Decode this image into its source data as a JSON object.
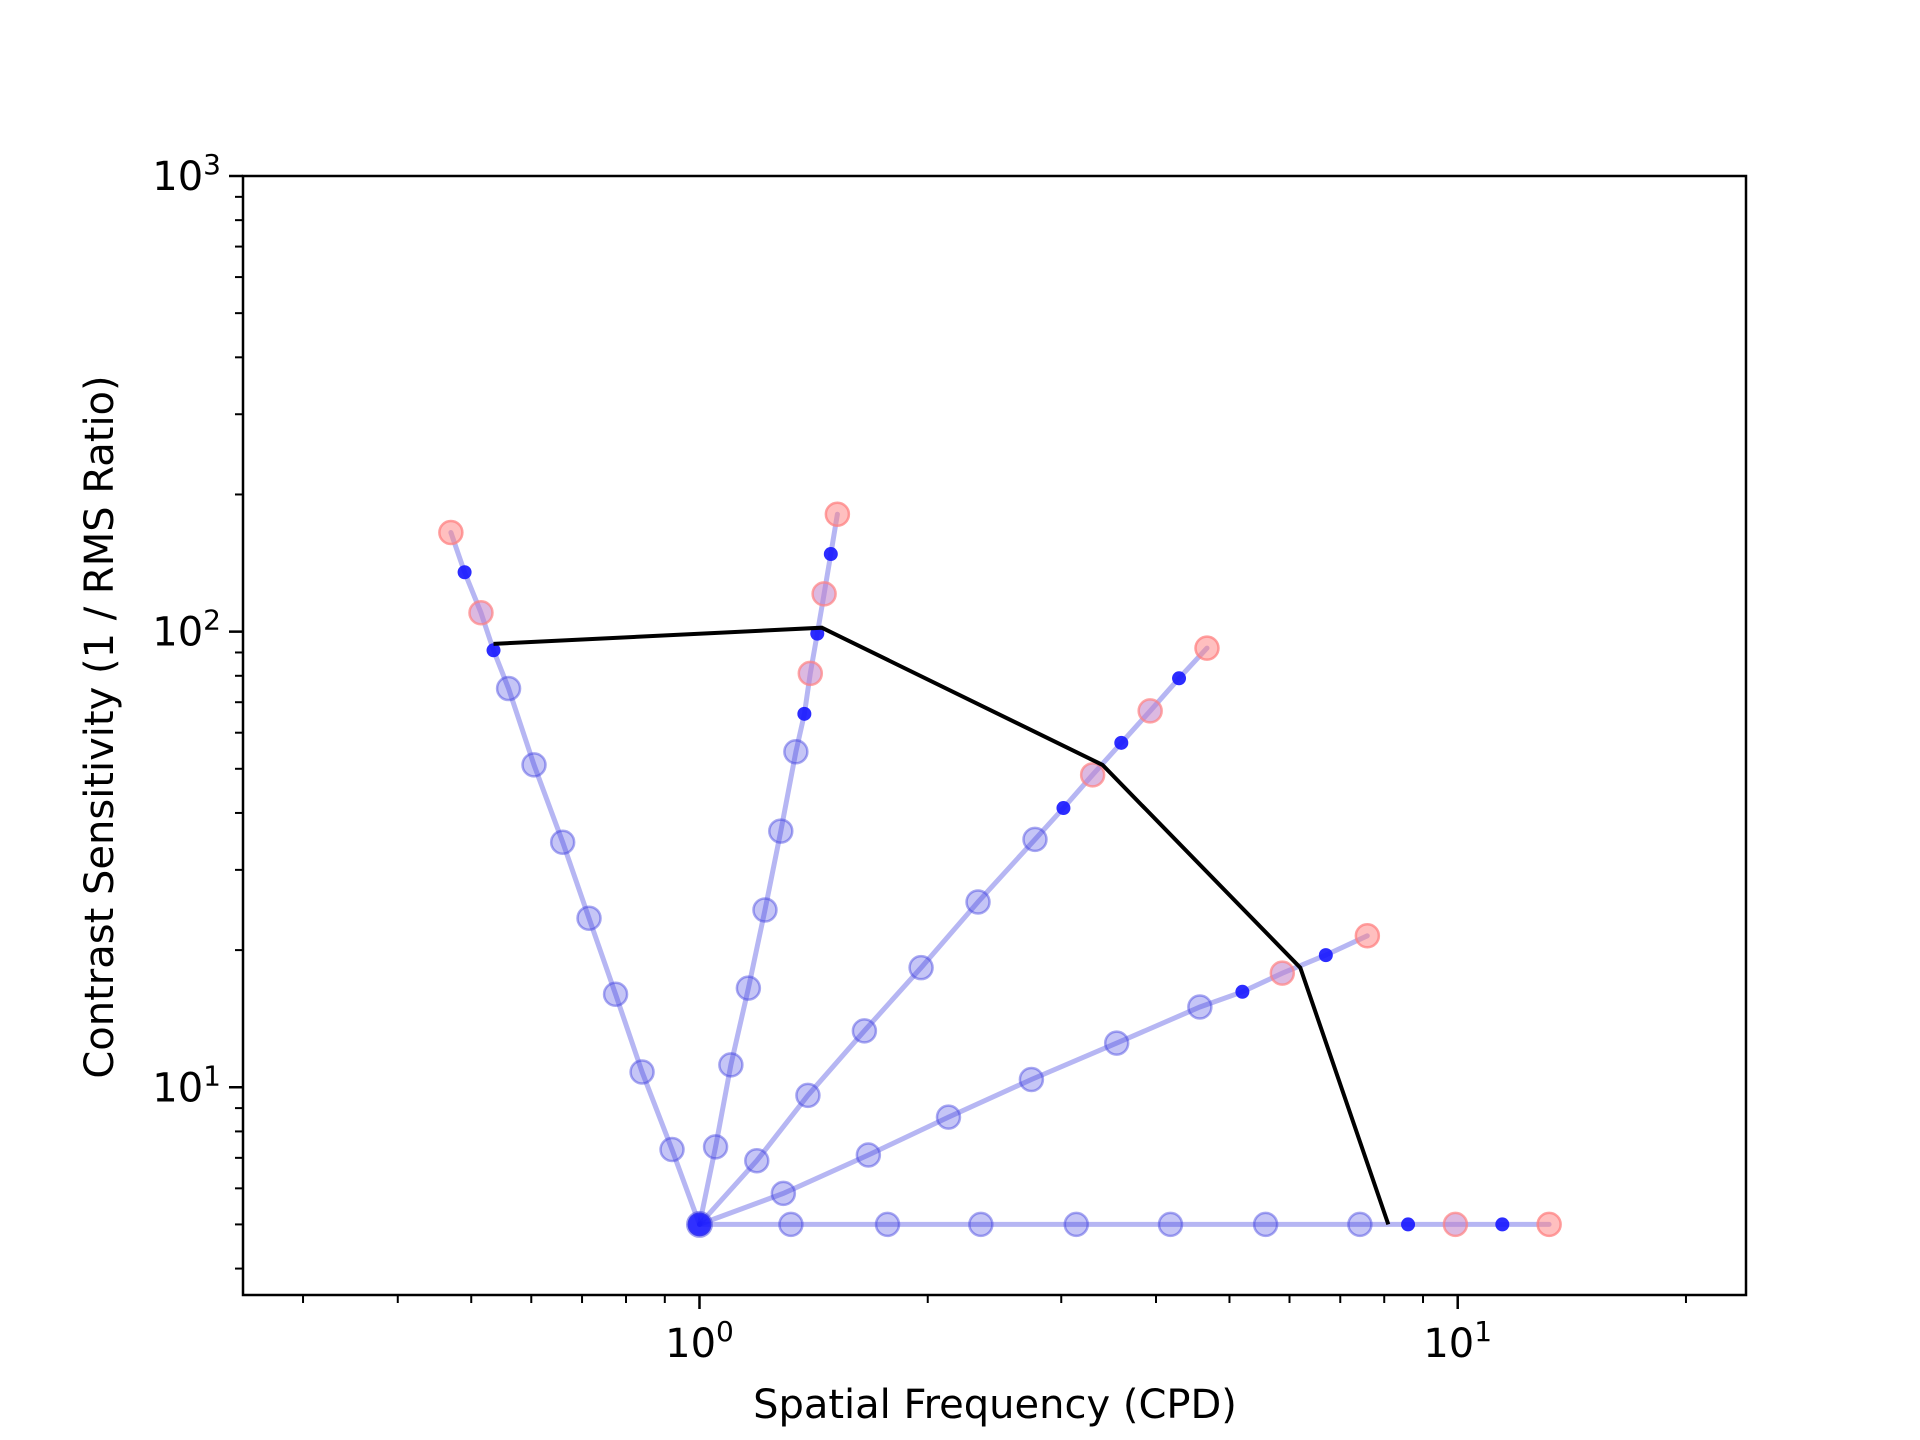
{
  "chart_data": {
    "type": "scatter",
    "title": "",
    "xlabel": "Spatial Frequency (CPD)",
    "ylabel": "Contrast Sensitivity (1 / RMS Ratio)",
    "xscale": "log",
    "yscale": "log",
    "xlim": [
      0.25,
      24
    ],
    "ylim": [
      3.5,
      1000
    ],
    "grid": false,
    "legend": "none",
    "x_major_ticks": [
      {
        "value": 1,
        "base": "10",
        "exp": "0"
      },
      {
        "value": 10,
        "base": "10",
        "exp": "1"
      }
    ],
    "y_major_ticks": [
      {
        "value": 10,
        "base": "10",
        "exp": "1"
      },
      {
        "value": 100,
        "base": "10",
        "exp": "2"
      },
      {
        "value": 1000,
        "base": "10",
        "exp": "3"
      }
    ],
    "colors": {
      "ray": "#4040e0",
      "point": "#1a1aff",
      "endpoint": "#ff8080",
      "envelope": "#000000"
    },
    "origin": {
      "x": 1.0,
      "y": 5.0
    },
    "rays": [
      {
        "points": [
          {
            "x": 0.92,
            "y": 7.3,
            "kind": "tested"
          },
          {
            "x": 0.84,
            "y": 10.8,
            "kind": "tested"
          },
          {
            "x": 0.775,
            "y": 16.0,
            "kind": "tested"
          },
          {
            "x": 0.715,
            "y": 23.5,
            "kind": "tested"
          },
          {
            "x": 0.66,
            "y": 34.5,
            "kind": "tested"
          },
          {
            "x": 0.605,
            "y": 51.0,
            "kind": "tested"
          },
          {
            "x": 0.56,
            "y": 75.0,
            "kind": "tested"
          },
          {
            "x": 0.535,
            "y": 91.0,
            "kind": "detected"
          },
          {
            "x": 0.515,
            "y": 110.0,
            "kind": "boundary"
          },
          {
            "x": 0.49,
            "y": 135.0,
            "kind": "detected"
          },
          {
            "x": 0.47,
            "y": 165.0,
            "kind": "endpoint"
          }
        ]
      },
      {
        "points": [
          {
            "x": 1.05,
            "y": 7.4,
            "kind": "tested"
          },
          {
            "x": 1.1,
            "y": 11.2,
            "kind": "tested"
          },
          {
            "x": 1.16,
            "y": 16.5,
            "kind": "tested"
          },
          {
            "x": 1.22,
            "y": 24.5,
            "kind": "tested"
          },
          {
            "x": 1.28,
            "y": 36.5,
            "kind": "tested"
          },
          {
            "x": 1.34,
            "y": 54.5,
            "kind": "tested"
          },
          {
            "x": 1.375,
            "y": 66.0,
            "kind": "detected"
          },
          {
            "x": 1.4,
            "y": 81.0,
            "kind": "boundary"
          },
          {
            "x": 1.43,
            "y": 99.0,
            "kind": "detected"
          },
          {
            "x": 1.46,
            "y": 121.0,
            "kind": "boundary"
          },
          {
            "x": 1.49,
            "y": 148.0,
            "kind": "detected"
          },
          {
            "x": 1.52,
            "y": 181.0,
            "kind": "endpoint"
          }
        ]
      },
      {
        "points": [
          {
            "x": 1.19,
            "y": 6.9,
            "kind": "tested"
          },
          {
            "x": 1.39,
            "y": 9.6,
            "kind": "tested"
          },
          {
            "x": 1.65,
            "y": 13.3,
            "kind": "tested"
          },
          {
            "x": 1.96,
            "y": 18.3,
            "kind": "tested"
          },
          {
            "x": 2.33,
            "y": 25.5,
            "kind": "tested"
          },
          {
            "x": 2.77,
            "y": 35.0,
            "kind": "tested"
          },
          {
            "x": 3.02,
            "y": 41.0,
            "kind": "detected"
          },
          {
            "x": 3.3,
            "y": 48.5,
            "kind": "boundary"
          },
          {
            "x": 3.6,
            "y": 57.0,
            "kind": "detected"
          },
          {
            "x": 3.93,
            "y": 67.0,
            "kind": "boundary"
          },
          {
            "x": 4.29,
            "y": 79.0,
            "kind": "detected"
          },
          {
            "x": 4.67,
            "y": 92.0,
            "kind": "endpoint"
          }
        ]
      },
      {
        "points": [
          {
            "x": 1.29,
            "y": 5.85,
            "kind": "tested"
          },
          {
            "x": 1.67,
            "y": 7.1,
            "kind": "tested"
          },
          {
            "x": 2.13,
            "y": 8.6,
            "kind": "tested"
          },
          {
            "x": 2.74,
            "y": 10.4,
            "kind": "tested"
          },
          {
            "x": 3.55,
            "y": 12.5,
            "kind": "tested"
          },
          {
            "x": 4.57,
            "y": 15.0,
            "kind": "tested"
          },
          {
            "x": 5.2,
            "y": 16.2,
            "kind": "detected"
          },
          {
            "x": 5.87,
            "y": 17.8,
            "kind": "boundary"
          },
          {
            "x": 6.7,
            "y": 19.5,
            "kind": "detected"
          },
          {
            "x": 7.6,
            "y": 21.5,
            "kind": "endpoint"
          }
        ]
      },
      {
        "points": [
          {
            "x": 1.32,
            "y": 5.0,
            "kind": "tested"
          },
          {
            "x": 1.77,
            "y": 5.0,
            "kind": "tested"
          },
          {
            "x": 2.35,
            "y": 5.0,
            "kind": "tested"
          },
          {
            "x": 3.14,
            "y": 5.0,
            "kind": "tested"
          },
          {
            "x": 4.18,
            "y": 5.0,
            "kind": "tested"
          },
          {
            "x": 5.58,
            "y": 5.0,
            "kind": "tested"
          },
          {
            "x": 7.43,
            "y": 5.0,
            "kind": "tested"
          },
          {
            "x": 8.6,
            "y": 5.0,
            "kind": "detected"
          },
          {
            "x": 9.93,
            "y": 5.0,
            "kind": "boundary"
          },
          {
            "x": 11.45,
            "y": 5.0,
            "kind": "detected"
          },
          {
            "x": 13.2,
            "y": 5.0,
            "kind": "endpoint"
          }
        ]
      }
    ],
    "envelope": [
      {
        "x": 0.535,
        "y": 94.0
      },
      {
        "x": 1.45,
        "y": 102.0
      },
      {
        "x": 3.4,
        "y": 51.0
      },
      {
        "x": 6.2,
        "y": 18.3
      },
      {
        "x": 8.1,
        "y": 5.0
      }
    ]
  }
}
